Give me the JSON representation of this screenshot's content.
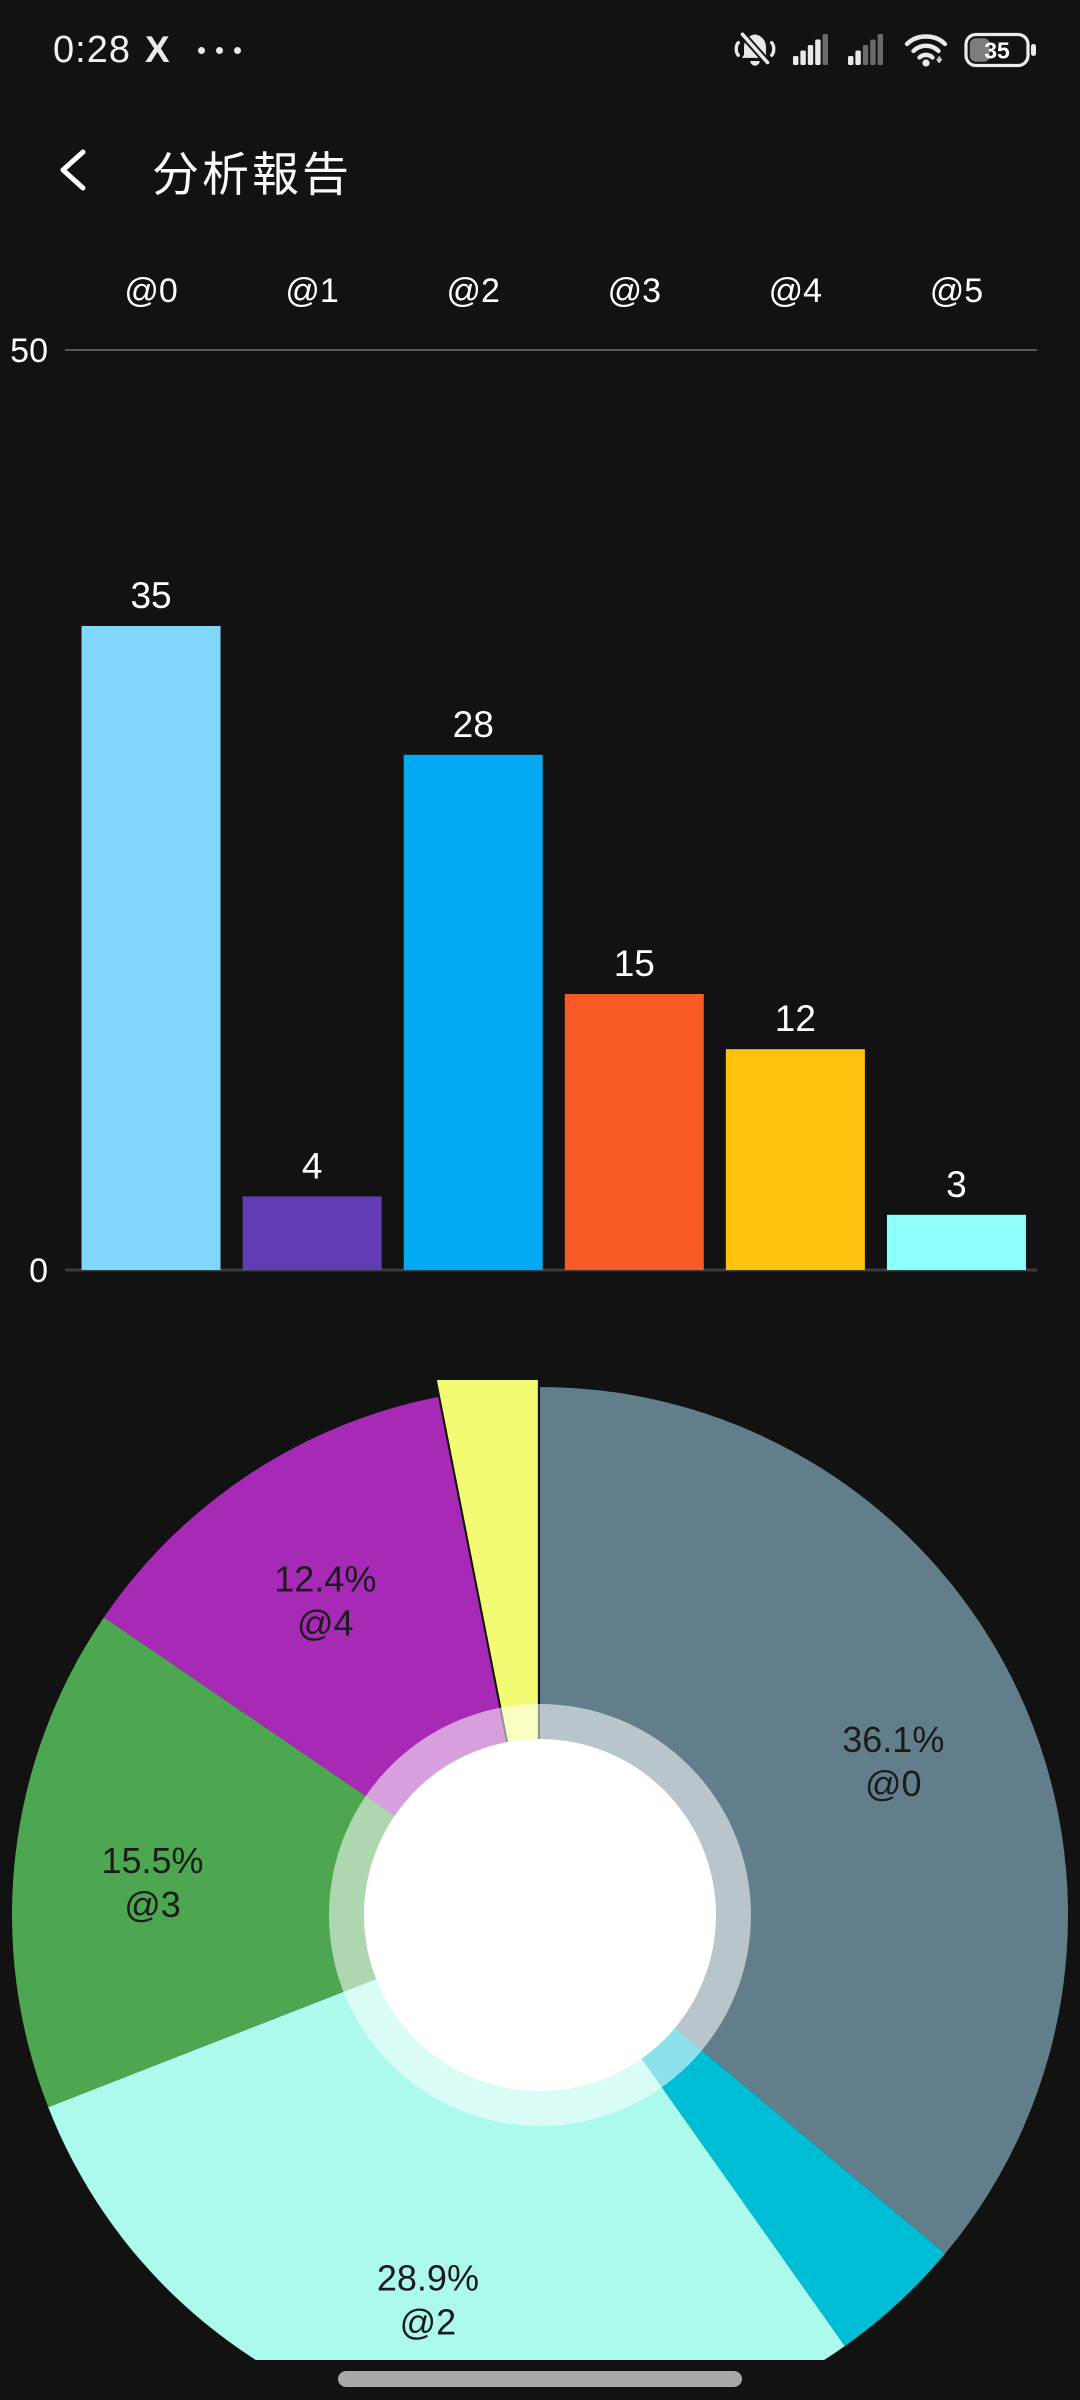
{
  "status_bar": {
    "time": "0:28",
    "x_logo": "X",
    "battery_percent": "35",
    "signal_bars_total": 5,
    "signal_sim1_bars_active": 4,
    "signal_sim2_bars_active": 2
  },
  "header": {
    "title": "分析報告"
  },
  "chart_data": [
    {
      "type": "bar",
      "categories": [
        "@0",
        "@1",
        "@2",
        "@3",
        "@4",
        "@5"
      ],
      "values": [
        35,
        4,
        28,
        15,
        12,
        3
      ],
      "value_labels": [
        "35",
        "4",
        "28",
        "15",
        "12",
        "3"
      ],
      "bar_colors": [
        "#81D7FB",
        "#613CB2",
        "#04A9F4",
        "#FA5A26",
        "#FDC20C",
        "#8CFFFA"
      ],
      "ylim": [
        0,
        50
      ],
      "yticks": [
        "50",
        "0"
      ],
      "x_labels_position": "top",
      "grid": "single gridline at 50",
      "legend": "none",
      "label_color": "#ffffff",
      "gridline_color": "#585858",
      "axis_line_color": "#3b3b3b"
    },
    {
      "type": "donut",
      "direction": "clockwise",
      "start_angle": "12 o'clock",
      "slices": [
        {
          "name": "@0",
          "value": 35,
          "pct_label": "36.1%",
          "color": "#627E8A",
          "labeled": true,
          "exploded": false
        },
        {
          "name": "@1",
          "value": 4,
          "pct_label": null,
          "color": "#00BDD6",
          "labeled": false,
          "exploded": false
        },
        {
          "name": "@2",
          "value": 28,
          "pct_label": "28.9%",
          "color": "#ACFAEC",
          "labeled": true,
          "exploded": false
        },
        {
          "name": "@3",
          "value": 15,
          "pct_label": "15.5%",
          "color": "#4CA750",
          "labeled": true,
          "exploded": false
        },
        {
          "name": "@4",
          "value": 12,
          "pct_label": "12.4%",
          "color": "#A62AB5",
          "labeled": true,
          "exploded": false
        },
        {
          "name": "@5",
          "value": 3,
          "pct_label": null,
          "color": "#F2FB72",
          "labeled": false,
          "exploded": true
        }
      ],
      "label_text_color": "#1b1b1b",
      "inner_circle_color": "#ffffff",
      "inner_ring_style": "slice color lightened with 55% white overlay"
    }
  ],
  "colors": {
    "background": "#121212",
    "status_icon": "#e9e9e9",
    "status_icon_dim": "#6a6a6a",
    "home_indicator": "#a8a8a8"
  }
}
